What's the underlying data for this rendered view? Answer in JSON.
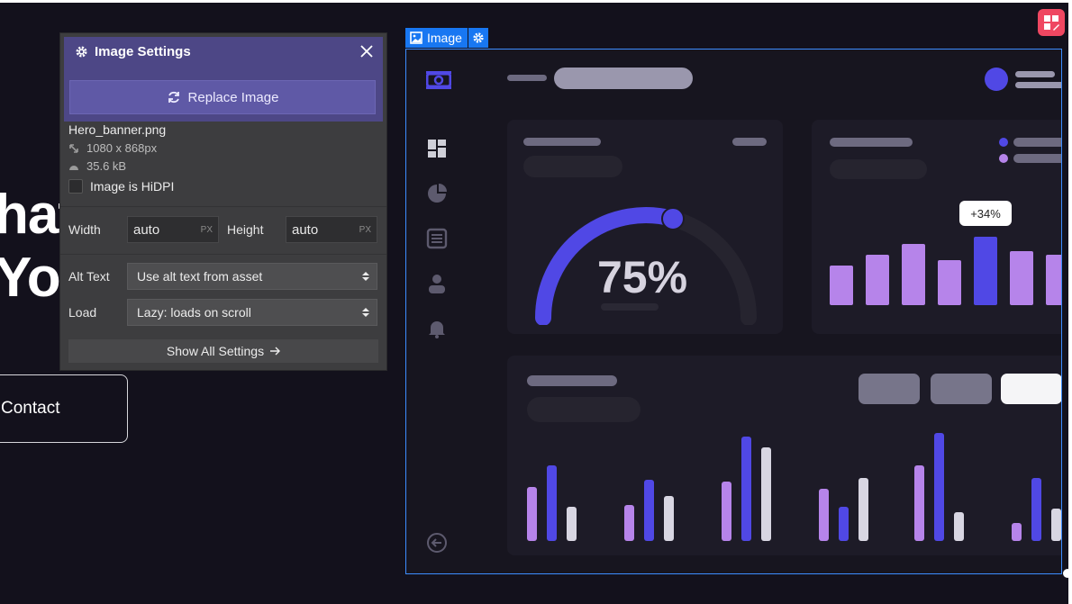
{
  "hero": {
    "line1": "hat",
    "line2": "You",
    "contact_label": "Contact"
  },
  "selection": {
    "tag_label": "Image"
  },
  "image_content": {
    "gauge_value": "75%",
    "badge": "+34%"
  },
  "settings_panel": {
    "title": "Image Settings",
    "replace_label": "Replace Image",
    "file_name": "Hero_banner.png",
    "dimensions": "1080 x 868px",
    "file_size": "35.6 kB",
    "hidpi_label": "Image is HiDPI",
    "hidpi_checked": false,
    "width_label": "Width",
    "width_value": "auto",
    "width_unit": "PX",
    "height_label": "Height",
    "height_value": "auto",
    "height_unit": "PX",
    "alt_label": "Alt Text",
    "alt_value": "Use alt text from asset",
    "load_label": "Load",
    "load_value": "Lazy: loads on scroll",
    "show_all_label": "Show All Settings"
  },
  "colors": {
    "accent": "#5048e5",
    "panel_header": "#4d4786",
    "selection_blue": "#1877f2",
    "bar_purple": "#b684ea"
  }
}
